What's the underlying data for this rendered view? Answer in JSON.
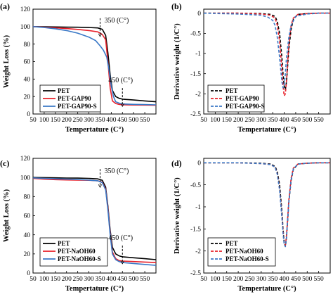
{
  "chart_data": [
    {
      "type": "line",
      "panel_label": "(a)",
      "xlabel": "Tempertature (C°)",
      "ylabel": "Weight Loss (%)",
      "xlim": [
        50,
        600
      ],
      "ylim": [
        0,
        120
      ],
      "x_ticks": [
        "50",
        "100",
        "150",
        "200",
        "250",
        "300",
        "350",
        "400",
        "450",
        "500",
        "550"
      ],
      "y_ticks": [
        "0",
        "20",
        "40",
        "60",
        "80",
        "100",
        "120"
      ],
      "grid": false,
      "legend_position": "bottom-left",
      "legend_linestyle": "solid",
      "annotations": [
        {
          "text": "350 (C°)",
          "x": 350,
          "y": 100
        },
        {
          "text": "450 (C°)",
          "x": 450,
          "y": 20
        }
      ],
      "series": [
        {
          "name": "PET",
          "color": "#000000",
          "style": "solid",
          "x": [
            50,
            100,
            150,
            200,
            250,
            300,
            340,
            360,
            375,
            385,
            395,
            405,
            420,
            435,
            450,
            500,
            550,
            600
          ],
          "y": [
            100,
            99.8,
            99.6,
            99.4,
            99.3,
            99,
            98.5,
            97,
            90,
            70,
            45,
            27,
            20,
            18,
            17,
            16,
            15,
            14
          ]
        },
        {
          "name": "PET-GAP90",
          "color": "#e8202a",
          "style": "solid",
          "x": [
            50,
            100,
            150,
            200,
            250,
            300,
            340,
            360,
            375,
            385,
            395,
            405,
            420,
            435,
            450,
            500,
            550,
            600
          ],
          "y": [
            100,
            99.3,
            98.6,
            97.8,
            96.8,
            95.5,
            94,
            91,
            85,
            60,
            30,
            15,
            12,
            11,
            10.5,
            10.3,
            10.2,
            10
          ]
        },
        {
          "name": "PET-GAP90-S",
          "color": "#3a78c6",
          "style": "solid",
          "x": [
            50,
            100,
            150,
            200,
            250,
            300,
            330,
            350,
            365,
            380,
            390,
            400,
            410,
            420,
            440,
            450,
            500,
            550,
            600
          ],
          "y": [
            100,
            99,
            97.5,
            95.5,
            92.5,
            88,
            84,
            78,
            73,
            65,
            50,
            32,
            20,
            14,
            12,
            11.5,
            11,
            10.8,
            10.5
          ]
        }
      ]
    },
    {
      "type": "line",
      "panel_label": "(b)",
      "xlabel": "Tempertature (C°)",
      "ylabel": "Derivative weight  (1/C°)",
      "xlim": [
        50,
        600
      ],
      "ylim": [
        -2.5,
        0.1
      ],
      "x_ticks": [
        "50",
        "100",
        "150",
        "200",
        "250",
        "300",
        "350",
        "400",
        "450",
        "500",
        "550"
      ],
      "y_ticks": [
        "0",
        "-0.5",
        "-1",
        "-1.5",
        "-2",
        "-2.5"
      ],
      "grid": false,
      "legend_position": "bottom-left",
      "legend_linestyle": "dashed",
      "series": [
        {
          "name": "PET",
          "color": "#000000",
          "style": "dashed",
          "x": [
            50,
            200,
            300,
            340,
            360,
            370,
            380,
            390,
            395,
            400,
            405,
            410,
            415,
            420,
            430,
            440,
            460,
            500,
            550,
            600
          ],
          "y": [
            0,
            0,
            -0.01,
            -0.03,
            -0.08,
            -0.2,
            -0.5,
            -1.1,
            -1.5,
            -1.8,
            -1.9,
            -1.7,
            -1.3,
            -0.9,
            -0.4,
            -0.15,
            -0.03,
            -0.01,
            0,
            0
          ]
        },
        {
          "name": "PET-GAP90",
          "color": "#e8202a",
          "style": "dashed",
          "x": [
            50,
            200,
            300,
            340,
            360,
            370,
            380,
            390,
            395,
            400,
            405,
            410,
            415,
            420,
            430,
            440,
            460,
            500,
            550,
            600
          ],
          "y": [
            0,
            0,
            -0.02,
            -0.05,
            -0.12,
            -0.3,
            -0.7,
            -1.4,
            -1.8,
            -2.05,
            -2.0,
            -1.7,
            -1.2,
            -0.8,
            -0.3,
            -0.12,
            -0.03,
            -0.01,
            0,
            0
          ]
        },
        {
          "name": "PET-GAP90-S",
          "color": "#3a78c6",
          "style": "dashed",
          "x": [
            50,
            200,
            300,
            330,
            350,
            360,
            370,
            380,
            385,
            390,
            395,
            400,
            405,
            410,
            420,
            430,
            450,
            500,
            550,
            600
          ],
          "y": [
            0,
            -0.02,
            -0.05,
            -0.1,
            -0.18,
            -0.3,
            -0.6,
            -1.1,
            -1.4,
            -1.7,
            -1.85,
            -1.8,
            -1.5,
            -1.1,
            -0.6,
            -0.3,
            -0.08,
            -0.02,
            0,
            0
          ]
        }
      ]
    },
    {
      "type": "line",
      "panel_label": "(c)",
      "xlabel": "Tempertature (C°)",
      "ylabel": "Weight Loss (%)",
      "xlim": [
        50,
        600
      ],
      "ylim": [
        0,
        120
      ],
      "x_ticks": [
        "50",
        "100",
        "150",
        "200",
        "250",
        "300",
        "350",
        "400",
        "450",
        "500",
        "550"
      ],
      "y_ticks": [
        "0",
        "20",
        "40",
        "60",
        "80",
        "100",
        "120"
      ],
      "grid": false,
      "legend_position": "bottom-left",
      "legend_linestyle": "solid",
      "annotations": [
        {
          "text": "350 (C°)",
          "x": 350,
          "y": 100
        },
        {
          "text": "450 (C°)",
          "x": 450,
          "y": 20
        }
      ],
      "series": [
        {
          "name": "PET",
          "color": "#000000",
          "style": "solid",
          "x": [
            50,
            100,
            150,
            200,
            250,
            300,
            340,
            360,
            375,
            385,
            395,
            405,
            420,
            435,
            450,
            500,
            550,
            600
          ],
          "y": [
            100,
            99.8,
            99.6,
            99.4,
            99.3,
            99,
            98.5,
            97,
            90,
            70,
            45,
            27,
            20,
            18,
            17,
            16,
            15,
            14
          ]
        },
        {
          "name": "PET-NaOH60",
          "color": "#e8202a",
          "style": "solid",
          "x": [
            50,
            100,
            150,
            200,
            250,
            300,
            340,
            360,
            375,
            385,
            395,
            405,
            420,
            435,
            450,
            500,
            550,
            600
          ],
          "y": [
            99,
            98.2,
            97.7,
            97.4,
            97.2,
            97,
            96.5,
            95,
            88,
            68,
            42,
            22,
            15,
            13,
            12.5,
            12,
            11.5,
            11
          ]
        },
        {
          "name": "PET-NaOH60-S",
          "color": "#3a78c6",
          "style": "solid",
          "x": [
            50,
            100,
            150,
            200,
            250,
            300,
            340,
            360,
            375,
            385,
            395,
            405,
            420,
            435,
            450,
            500,
            550,
            600
          ],
          "y": [
            99.5,
            99,
            98.6,
            98.2,
            97.8,
            97.2,
            96.5,
            94.5,
            87,
            66,
            40,
            20,
            14,
            12,
            11,
            10,
            9,
            8
          ]
        }
      ]
    },
    {
      "type": "line",
      "panel_label": "(d)",
      "xlabel": "Tempertature (C°)",
      "ylabel": "Derivative weight  (1/C°)",
      "xlim": [
        50,
        600
      ],
      "ylim": [
        -2.5,
        0.1
      ],
      "x_ticks": [
        "50",
        "100",
        "150",
        "200",
        "250",
        "300",
        "350",
        "400",
        "450",
        "500",
        "550"
      ],
      "y_ticks": [
        "0",
        "-0.5",
        "-1",
        "-1.5",
        "-2",
        "-2.5"
      ],
      "grid": false,
      "legend_position": "bottom-left",
      "legend_linestyle": "dashed",
      "series": [
        {
          "name": "PET",
          "color": "#000000",
          "style": "dashed",
          "x": [
            50,
            200,
            300,
            340,
            360,
            370,
            380,
            390,
            395,
            400,
            405,
            410,
            415,
            420,
            430,
            440,
            460,
            500,
            550,
            600
          ],
          "y": [
            0,
            0,
            -0.01,
            -0.03,
            -0.08,
            -0.2,
            -0.5,
            -1.1,
            -1.5,
            -1.8,
            -1.9,
            -1.7,
            -1.3,
            -0.9,
            -0.4,
            -0.15,
            -0.03,
            -0.01,
            0,
            0
          ]
        },
        {
          "name": "PET-NaOH60",
          "color": "#e8202a",
          "style": "dashed",
          "x": [
            50,
            200,
            300,
            340,
            360,
            370,
            380,
            390,
            395,
            400,
            405,
            410,
            415,
            420,
            430,
            440,
            460,
            500,
            550,
            600
          ],
          "y": [
            0,
            0,
            -0.02,
            -0.04,
            -0.1,
            -0.25,
            -0.6,
            -1.2,
            -1.55,
            -1.82,
            -1.88,
            -1.65,
            -1.25,
            -0.85,
            -0.35,
            -0.12,
            -0.03,
            -0.01,
            0,
            0
          ]
        },
        {
          "name": "PET-NaOH60-S",
          "color": "#3a78c6",
          "style": "dashed",
          "x": [
            50,
            200,
            300,
            340,
            360,
            370,
            380,
            390,
            395,
            400,
            405,
            410,
            415,
            420,
            430,
            440,
            460,
            500,
            550,
            600
          ],
          "y": [
            0,
            0,
            -0.02,
            -0.04,
            -0.1,
            -0.26,
            -0.62,
            -1.25,
            -1.6,
            -1.85,
            -1.9,
            -1.7,
            -1.3,
            -0.9,
            -0.38,
            -0.14,
            -0.03,
            -0.01,
            0,
            0
          ]
        }
      ]
    }
  ]
}
